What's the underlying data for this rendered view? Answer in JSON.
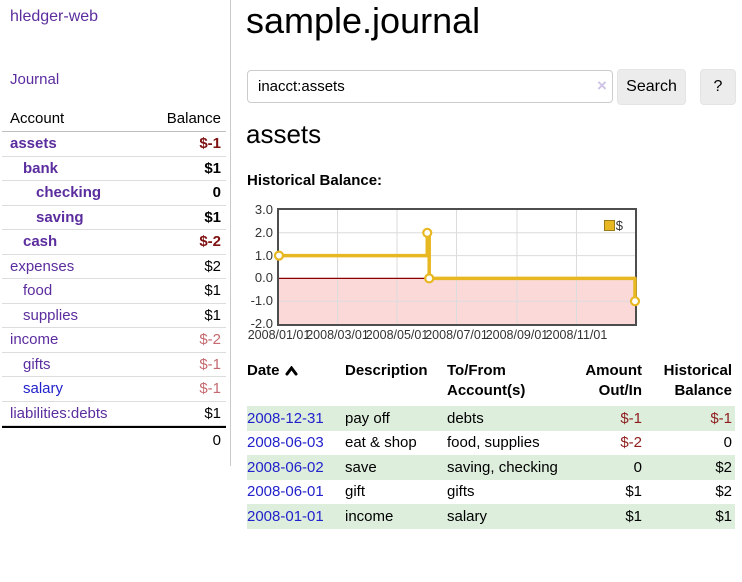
{
  "app": {
    "title": "hledger-web"
  },
  "sidebar": {
    "journal_link": "Journal",
    "accounts": {
      "col_account": "Account",
      "col_balance": "Balance",
      "rows": [
        {
          "name": "assets",
          "depth": 1,
          "bold": true,
          "balance": "$-1",
          "neg": true,
          "link": "purple"
        },
        {
          "name": "bank",
          "depth": 2,
          "bold": true,
          "balance": "$1",
          "neg": false,
          "link": "purple"
        },
        {
          "name": "checking",
          "depth": 3,
          "bold": true,
          "balance": "0",
          "neg": false,
          "link": "purple"
        },
        {
          "name": "saving",
          "depth": 3,
          "bold": true,
          "balance": "$1",
          "neg": false,
          "link": "purple"
        },
        {
          "name": "cash",
          "depth": 2,
          "bold": true,
          "balance": "$-2",
          "neg": true,
          "link": "purple"
        },
        {
          "name": "expenses",
          "depth": 1,
          "bold": false,
          "balance": "$2",
          "neg": false,
          "link": "purple"
        },
        {
          "name": "food",
          "depth": 2,
          "bold": false,
          "balance": "$1",
          "neg": false,
          "link": "purple"
        },
        {
          "name": "supplies",
          "depth": 2,
          "bold": false,
          "balance": "$1",
          "neg": false,
          "link": "purple"
        },
        {
          "name": "income",
          "depth": 1,
          "bold": false,
          "balance": "$-2",
          "neg": true,
          "link": "purple"
        },
        {
          "name": "gifts",
          "depth": 2,
          "bold": false,
          "balance": "$-1",
          "neg": true,
          "link": "purple"
        },
        {
          "name": "salary",
          "depth": 2,
          "bold": false,
          "balance": "$-1",
          "neg": true,
          "link": "blue"
        },
        {
          "name": "liabilities:debts",
          "depth": 1,
          "bold": false,
          "balance": "$1",
          "neg": false,
          "link": "purple"
        }
      ],
      "total": "0"
    }
  },
  "main": {
    "title": "sample.journal",
    "search": {
      "value": "inacct:assets",
      "clear_icon": "×",
      "search_button": "Search",
      "help_button": "?"
    },
    "account_heading": "assets",
    "chart_label": "Historical Balance:"
  },
  "chart_data": {
    "type": "line",
    "title": "Historical Balance",
    "step": true,
    "grid": true,
    "legend_position": "top-right",
    "legend": [
      {
        "label": "$",
        "color": "#e8b822"
      }
    ],
    "ylim": [
      -2,
      3
    ],
    "yticks": [
      {
        "label": "3.0",
        "v": 3
      },
      {
        "label": "2.0",
        "v": 2
      },
      {
        "label": "1.0",
        "v": 1
      },
      {
        "label": "0.0",
        "v": 0
      },
      {
        "label": "-1.0",
        "v": -1
      },
      {
        "label": "-2.0",
        "v": -2
      }
    ],
    "x_total_days": 365,
    "xticks": [
      {
        "label": "2008/01/01",
        "day": 0
      },
      {
        "label": "2008/03/01",
        "day": 60
      },
      {
        "label": "2008/05/01",
        "day": 121
      },
      {
        "label": "2008/07/01",
        "day": 182
      },
      {
        "label": "2008/09/01",
        "day": 244
      },
      {
        "label": "2008/11/01",
        "day": 305
      }
    ],
    "series": [
      {
        "name": "$",
        "color": "#e8b822",
        "points": [
          {
            "date": "2008-01-01",
            "day": 0,
            "value": 1
          },
          {
            "date": "2008-06-01",
            "day": 152,
            "value": 2
          },
          {
            "date": "2008-06-02",
            "day": 153,
            "value": 2
          },
          {
            "date": "2008-06-03",
            "day": 154,
            "value": 0
          },
          {
            "date": "2008-12-31",
            "day": 365,
            "value": -1
          }
        ]
      }
    ],
    "markers": [
      {
        "day": 0,
        "value": 1
      },
      {
        "day": 152,
        "value": 2
      },
      {
        "day": 154,
        "value": 0
      },
      {
        "day": 365,
        "value": -1
      }
    ],
    "negative_area_color": "#fbd9d9",
    "zero_line_color": "#8b0000",
    "gridline_color": "#dcdcdc"
  },
  "register": {
    "headers": {
      "date": "Date",
      "description": "Description",
      "tofrom": "To/From Account(s)",
      "amount": "Amount Out/In",
      "balance": "Historical Balance"
    },
    "rows": [
      {
        "date": "2008-12-31",
        "description": "pay off",
        "accounts": "debts",
        "amount": "$-1",
        "amount_neg": true,
        "balance": "$-1",
        "balance_neg": true
      },
      {
        "date": "2008-06-03",
        "description": "eat & shop",
        "accounts": "food, supplies",
        "amount": "$-2",
        "amount_neg": true,
        "balance": "0",
        "balance_neg": false
      },
      {
        "date": "2008-06-02",
        "description": "save",
        "accounts": "saving, checking",
        "amount": "0",
        "amount_neg": false,
        "balance": "$2",
        "balance_neg": false
      },
      {
        "date": "2008-06-01",
        "description": "gift",
        "accounts": "gifts",
        "amount": "$1",
        "amount_neg": false,
        "balance": "$2",
        "balance_neg": false
      },
      {
        "date": "2008-01-01",
        "description": "income",
        "accounts": "salary",
        "amount": "$1",
        "amount_neg": false,
        "balance": "$1",
        "balance_neg": false
      }
    ]
  }
}
